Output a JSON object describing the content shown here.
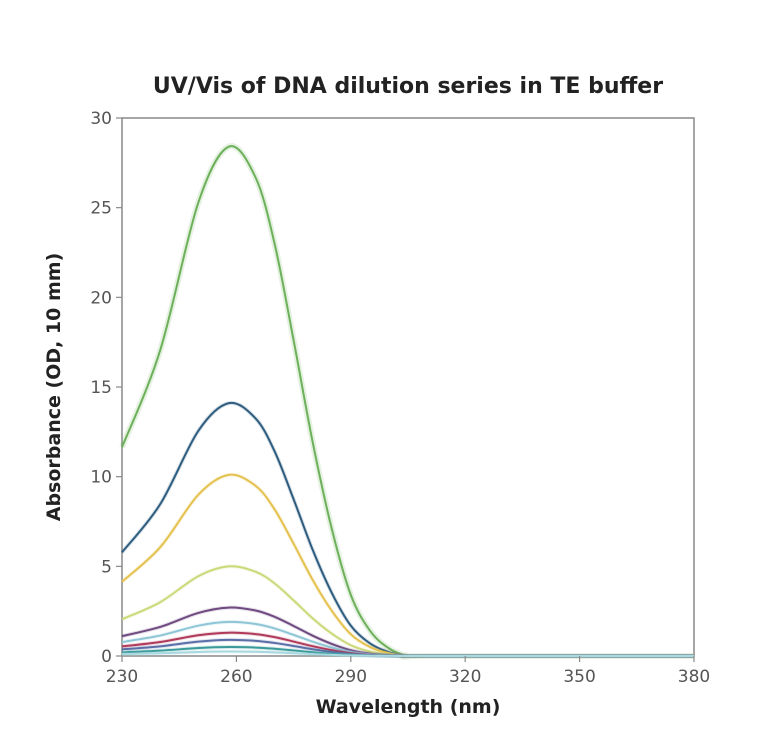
{
  "chart_data": {
    "type": "line",
    "title": "UV/Vis of DNA dilution series in TE buffer",
    "xlabel": "Wavelength (nm)",
    "ylabel": "Absorbance (OD, 10 mm)",
    "xlim": [
      230,
      380
    ],
    "ylim": [
      0,
      30
    ],
    "xticks": [
      230,
      260,
      290,
      320,
      350,
      380
    ],
    "yticks": [
      0,
      5,
      10,
      15,
      20,
      25,
      30
    ],
    "grid": false,
    "legend": "none",
    "x": [
      230,
      240,
      250,
      258,
      265,
      270,
      275,
      280,
      285,
      290,
      295,
      300,
      305,
      310,
      380
    ],
    "shape": [
      0.41,
      0.6,
      0.89,
      1.0,
      0.94,
      0.81,
      0.62,
      0.42,
      0.25,
      0.12,
      0.05,
      0.015,
      0.0,
      0.0,
      0.0
    ],
    "series": [
      {
        "peak": 28.4,
        "color": "#6db05a"
      },
      {
        "peak": 14.1,
        "color": "#2f5d7f"
      },
      {
        "peak": 10.1,
        "color": "#e5c24f"
      },
      {
        "peak": 5.0,
        "color": "#ccd97a"
      },
      {
        "peak": 2.7,
        "color": "#6e4a80"
      },
      {
        "peak": 1.9,
        "color": "#8ec6d6"
      },
      {
        "peak": 1.3,
        "color": "#b03a5a"
      },
      {
        "peak": 0.9,
        "color": "#5a6fa8"
      },
      {
        "peak": 0.5,
        "color": "#3a9a9a"
      },
      {
        "peak": 0.25,
        "color": "#a8d8e0"
      }
    ]
  }
}
